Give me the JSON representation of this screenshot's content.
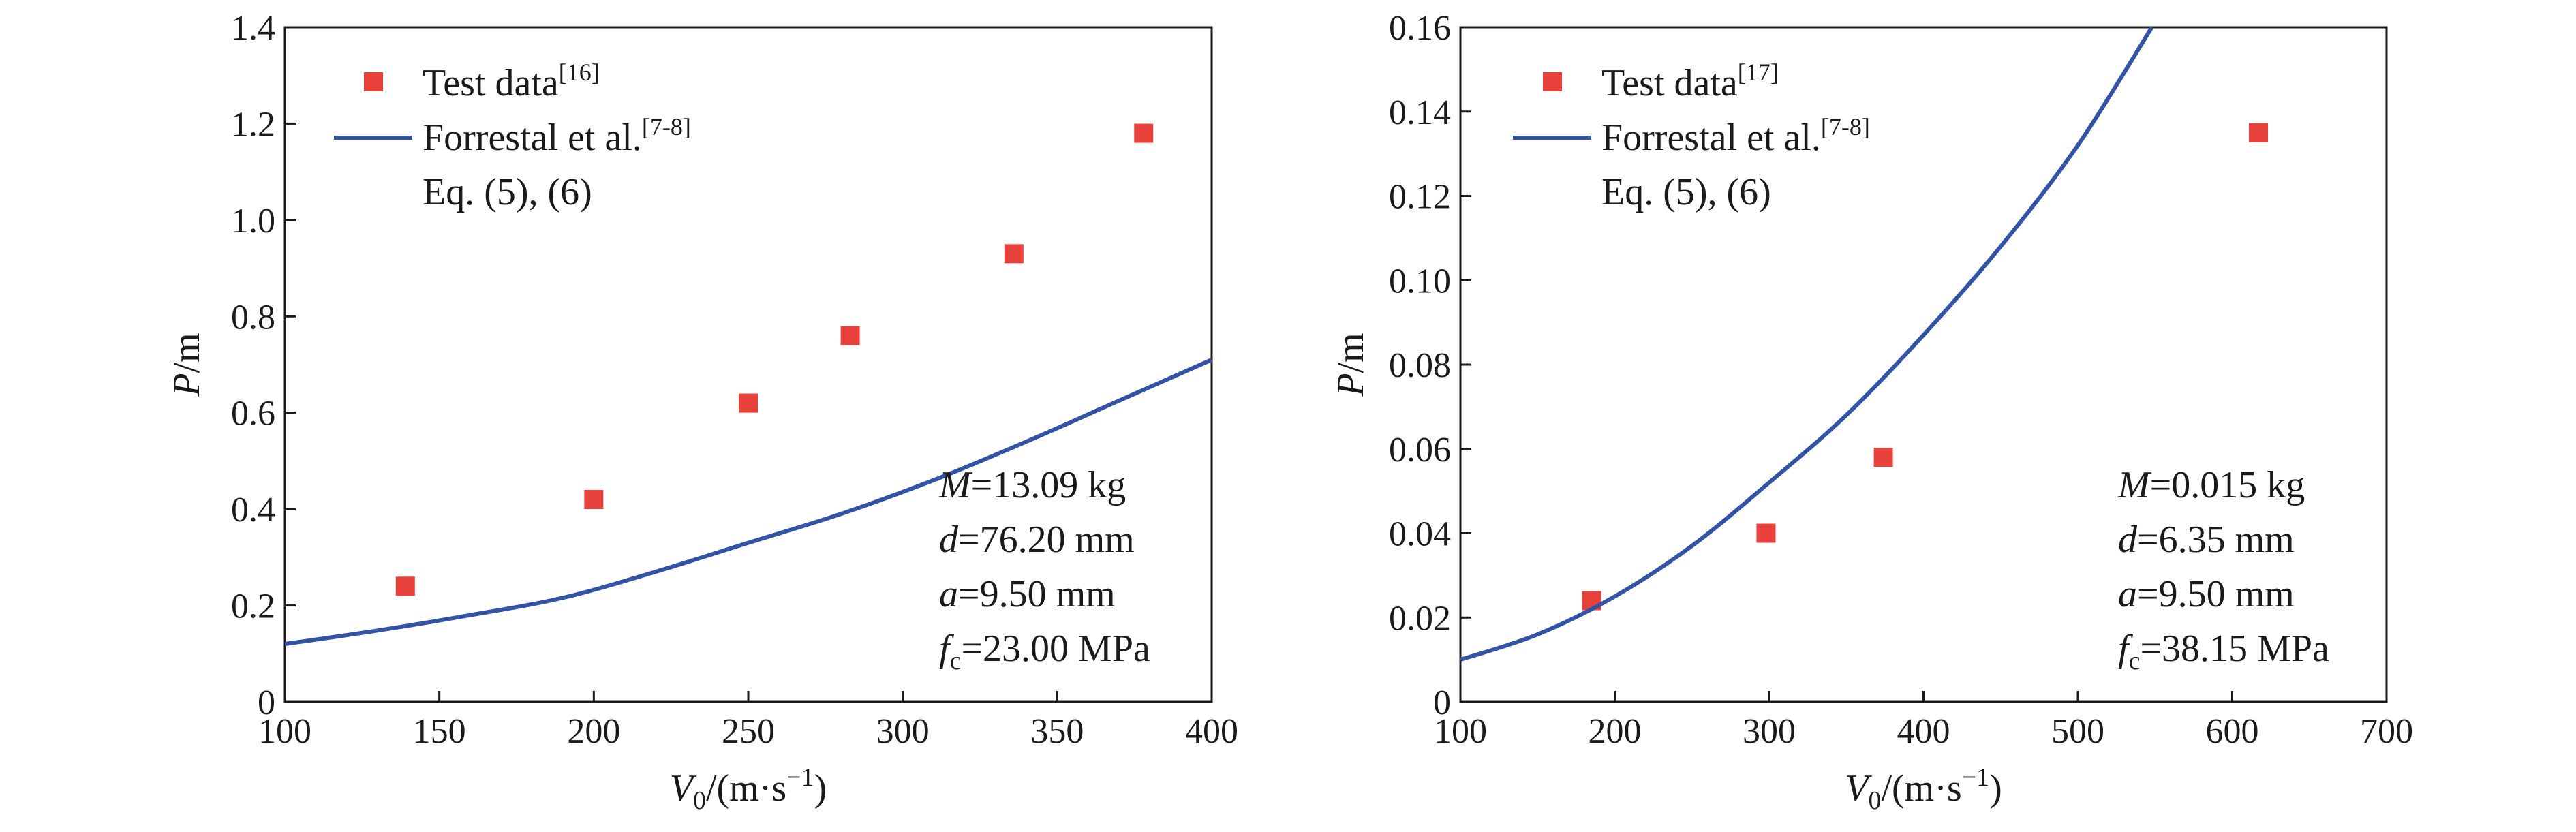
{
  "colors": {
    "marker": "#e8413c",
    "curve": "#3354a4",
    "axis": "#1a1a1a"
  },
  "chart_data": [
    {
      "id": "left",
      "type": "scatter",
      "xlabel": {
        "main": "V",
        "sub": "0",
        "unit": "/(m·s",
        "sup": "−1",
        "close": ")"
      },
      "ylabel": {
        "main": "P",
        "unit": "/m"
      },
      "xlim": [
        100,
        400
      ],
      "ylim": [
        0,
        1.4
      ],
      "xticks": [
        100,
        150,
        200,
        250,
        300,
        350,
        400
      ],
      "yticks": [
        0,
        0.2,
        0.4,
        0.6,
        0.8,
        1.0,
        1.2,
        1.4
      ],
      "xtick_labels": [
        "100",
        "150",
        "200",
        "250",
        "300",
        "350",
        "400"
      ],
      "ytick_labels": [
        "0",
        "0.2",
        "0.4",
        "0.6",
        "0.8",
        "1.0",
        "1.2",
        "1.4"
      ],
      "legend_position": "top-left",
      "series": [
        {
          "name": "Test data",
          "ref": "[16]",
          "kind": "markers",
          "x": [
            139,
            200,
            250,
            283,
            336,
            378
          ],
          "y": [
            0.24,
            0.42,
            0.62,
            0.76,
            0.93,
            1.18
          ]
        },
        {
          "name": "Forrestal et al.",
          "ref": "[7-8]",
          "kind": "line",
          "x": [
            100,
            130,
            160,
            190,
            220,
            250,
            280,
            310,
            340,
            370,
            400
          ],
          "y": [
            0.12,
            0.148,
            0.18,
            0.216,
            0.27,
            0.33,
            0.39,
            0.46,
            0.54,
            0.625,
            0.71
          ]
        }
      ],
      "legend_extra": "Eq. (5), (6)",
      "annotations": [
        {
          "sym": "M",
          "sub": "",
          "val": "=13.09 kg"
        },
        {
          "sym": "d",
          "sub": "",
          "val": "=76.20 mm"
        },
        {
          "sym": "a",
          "sub": "",
          "val": "=9.50 mm"
        },
        {
          "sym": "f",
          "sub": "c",
          "val": "=23.00 MPa"
        }
      ]
    },
    {
      "id": "right",
      "type": "scatter",
      "xlabel": {
        "main": "V",
        "sub": "0",
        "unit": "/(m·s",
        "sup": "−1",
        "close": ")"
      },
      "ylabel": {
        "main": "P",
        "unit": "/m"
      },
      "xlim": [
        100,
        700
      ],
      "ylim": [
        0,
        0.16
      ],
      "xticks": [
        100,
        200,
        300,
        400,
        500,
        600,
        700
      ],
      "yticks": [
        0,
        0.02,
        0.04,
        0.06,
        0.08,
        0.1,
        0.12,
        0.14,
        0.16
      ],
      "xtick_labels": [
        "100",
        "200",
        "300",
        "400",
        "500",
        "600",
        "700"
      ],
      "ytick_labels": [
        "0",
        "0.02",
        "0.04",
        "0.06",
        "0.08",
        "0.10",
        "0.12",
        "0.14",
        "0.16"
      ],
      "legend_position": "top-left",
      "series": [
        {
          "name": "Test data",
          "ref": "[17]",
          "kind": "markers",
          "x": [
            185,
            298,
            374,
            617
          ],
          "y": [
            0.024,
            0.04,
            0.058,
            0.135
          ]
        },
        {
          "name": "Forrestal et al.",
          "ref": "[7-8]",
          "kind": "line",
          "x": [
            100,
            150,
            200,
            250,
            300,
            350,
            400,
            450,
            500,
            548
          ],
          "y": [
            0.01,
            0.016,
            0.025,
            0.037,
            0.052,
            0.068,
            0.087,
            0.108,
            0.132,
            0.16
          ]
        }
      ],
      "legend_extra": "Eq. (5), (6)",
      "annotations": [
        {
          "sym": "M",
          "sub": "",
          "val": "=0.015 kg"
        },
        {
          "sym": "d",
          "sub": "",
          "val": "=6.35 mm"
        },
        {
          "sym": "a",
          "sub": "",
          "val": "=9.50 mm"
        },
        {
          "sym": "f",
          "sub": "c",
          "val": "=38.15 MPa"
        }
      ]
    }
  ]
}
